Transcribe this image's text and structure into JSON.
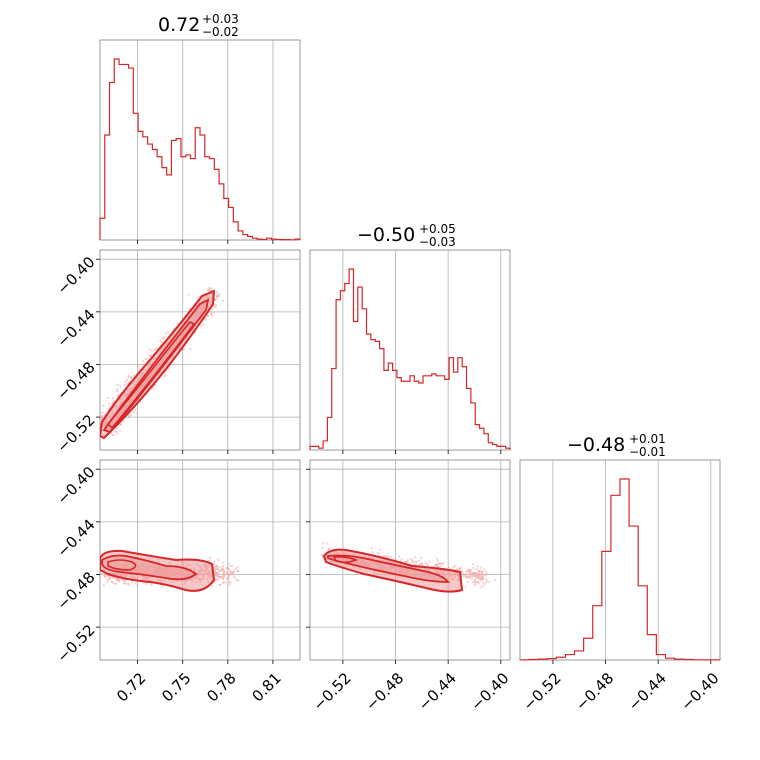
{
  "colors": {
    "main": "#d62728",
    "grid": "#b0b0b0",
    "frame": "#808080",
    "scatter": "#f4a6a6",
    "fill": "#ef9a9a"
  },
  "chart_data": {
    "type": "corner",
    "titles": [
      {
        "value": "0.72",
        "plus": "+0.03",
        "minus": "−0.02"
      },
      {
        "value": "−0.50",
        "plus": "+0.05",
        "minus": "−0.03"
      },
      {
        "value": "−0.48",
        "plus": "+0.01",
        "minus": "−0.01"
      }
    ],
    "ranges": [
      [
        0.695,
        0.828
      ],
      [
        -0.545,
        -0.393
      ],
      [
        -0.545,
        -0.393
      ]
    ],
    "ticks": {
      "p0": {
        "values": [
          0.72,
          0.75,
          0.78,
          0.81
        ],
        "labels": [
          "0.72",
          "0.75",
          "0.78",
          "0.81"
        ]
      },
      "p1": {
        "values": [
          -0.52,
          -0.48,
          -0.44,
          -0.4
        ],
        "labels": [
          "−0.52",
          "−0.48",
          "−0.44",
          "−0.40"
        ]
      },
      "p2": {
        "values": [
          -0.52,
          -0.48,
          -0.44,
          -0.4
        ],
        "labels": [
          "−0.52",
          "−0.48",
          "−0.44",
          "−0.40"
        ]
      }
    },
    "hist_p0": [
      0.12,
      0.58,
      0.87,
      1.0,
      0.97,
      0.97,
      0.95,
      0.7,
      0.6,
      0.57,
      0.53,
      0.5,
      0.46,
      0.4,
      0.36,
      0.55,
      0.56,
      0.46,
      0.47,
      0.45,
      0.62,
      0.58,
      0.46,
      0.45,
      0.39,
      0.31,
      0.23,
      0.18,
      0.1,
      0.05,
      0.03,
      0.02,
      0.01,
      0.005,
      0.003,
      0.01,
      0.005,
      0.003,
      0.002,
      0.002,
      0.001,
      0.005
    ],
    "hist_p1": [
      0.02,
      0.02,
      0.01,
      0.05,
      0.18,
      0.45,
      0.83,
      0.88,
      0.92,
      1.0,
      0.71,
      0.9,
      0.78,
      0.64,
      0.61,
      0.6,
      0.56,
      0.44,
      0.48,
      0.44,
      0.4,
      0.38,
      0.38,
      0.41,
      0.38,
      0.37,
      0.41,
      0.41,
      0.42,
      0.41,
      0.41,
      0.39,
      0.51,
      0.43,
      0.51,
      0.46,
      0.34,
      0.26,
      0.14,
      0.12,
      0.09,
      0.04,
      0.03,
      0.02,
      0.02,
      0.01
    ],
    "hist_p2": [
      0.001,
      0.003,
      0.005,
      0.008,
      0.015,
      0.03,
      0.05,
      0.12,
      0.3,
      0.6,
      0.91,
      1.0,
      0.74,
      0.41,
      0.14,
      0.03,
      0.01,
      0.005,
      0.003,
      0.001,
      0.001,
      0.001
    ]
  }
}
